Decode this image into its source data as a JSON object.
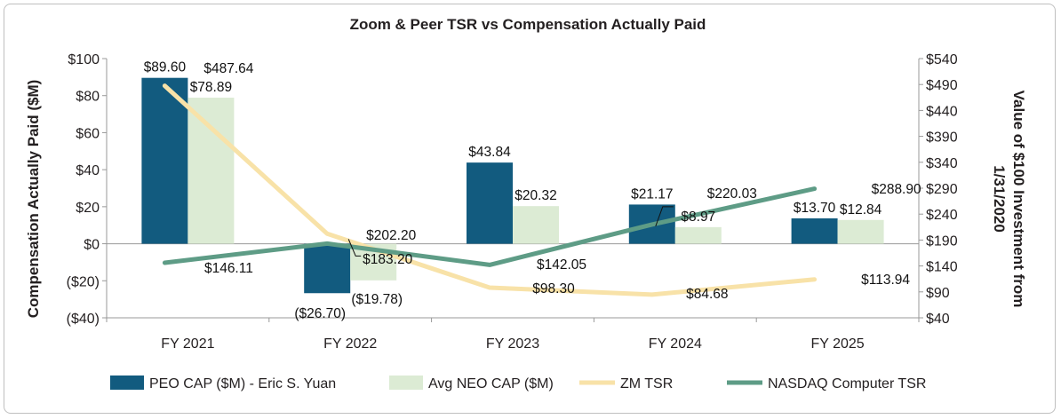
{
  "chart_data": {
    "type": "bar",
    "title": "Zoom & Peer TSR vs Compensation Actually Paid",
    "categories": [
      "FY 2021",
      "FY 2022",
      "FY 2023",
      "FY 2024",
      "FY 2025"
    ],
    "ylabel": "Compensation Actually Paid ($M)",
    "y2label": "Value of $100 Investment from 1/31/2020",
    "ylim": [
      -40,
      100
    ],
    "y2lim": [
      40,
      540
    ],
    "yticks": [
      "$100",
      "$80",
      "$60",
      "$40",
      "$20",
      "$0",
      "($20)",
      "($40)"
    ],
    "y2ticks": [
      "$540",
      "$490",
      "$440",
      "$390",
      "$340",
      "$290",
      "$240",
      "$190",
      "$140",
      "$90",
      "$40"
    ],
    "series": [
      {
        "name": "PEO CAP ($M) - Eric S. Yuan",
        "kind": "bar",
        "axis": "left",
        "color": "#125b7f",
        "values": [
          89.6,
          -26.7,
          43.84,
          21.17,
          13.7
        ],
        "labels": [
          "$89.60",
          "($26.70)",
          "$43.84",
          "$21.17",
          "$13.70"
        ]
      },
      {
        "name": "Avg NEO CAP ($M)",
        "kind": "bar",
        "axis": "left",
        "color": "#dcebd4",
        "values": [
          78.89,
          -19.78,
          20.32,
          8.97,
          12.84
        ],
        "labels": [
          "$78.89",
          "($19.78)",
          "$20.32",
          "$8.97",
          "$12.84"
        ]
      },
      {
        "name": "ZM TSR",
        "kind": "line",
        "axis": "right",
        "color": "#f8e2a8",
        "values": [
          487.64,
          202.2,
          98.3,
          84.68,
          113.94
        ],
        "labels": [
          "$487.64",
          "$202.20",
          "$98.30",
          "$84.68",
          "$113.94"
        ]
      },
      {
        "name": "NASDAQ Computer TSR",
        "kind": "line",
        "axis": "right",
        "color": "#5e9c86",
        "values": [
          146.11,
          183.2,
          142.05,
          220.03,
          288.9
        ],
        "labels": [
          "$146.11",
          "$183.20",
          "$142.05",
          "$220.03",
          "$288.90"
        ]
      }
    ],
    "legend_position": "bottom"
  }
}
